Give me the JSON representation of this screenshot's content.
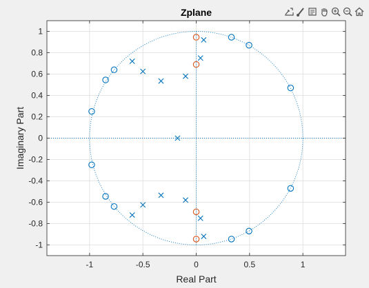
{
  "chart_data": {
    "type": "scatter",
    "title": "Zplane",
    "xlabel": "Real Part",
    "ylabel": "Imaginary Part",
    "xlim": [
      -1.4,
      1.4
    ],
    "ylim": [
      -1.1,
      1.1
    ],
    "xticks": [
      -1,
      -0.5,
      0,
      0.5,
      1
    ],
    "xtick_labels": [
      "-1",
      "-0.5",
      "0",
      "0.5",
      "1"
    ],
    "yticks": [
      1,
      0.8,
      0.6,
      0.4,
      0.2,
      0,
      -0.2,
      -0.4,
      -0.6,
      -0.8,
      -1
    ],
    "ytick_labels": [
      "1",
      "0.8",
      "0.6",
      "0.4",
      "0.2",
      "0",
      "-0.2",
      "-0.4",
      "-0.6",
      "-0.8",
      "-1"
    ],
    "grid": true,
    "unit_circle": true,
    "series": [
      {
        "marker": "o",
        "color": "#0072BD",
        "points": [
          [
            0.33,
            0.945
          ],
          [
            0.495,
            0.87
          ],
          [
            0.885,
            0.47
          ],
          [
            -0.98,
            0.25
          ],
          [
            -0.85,
            0.545
          ],
          [
            -0.77,
            0.64
          ],
          [
            -0.98,
            -0.25
          ],
          [
            -0.85,
            -0.545
          ],
          [
            -0.77,
            -0.64
          ],
          [
            0.33,
            -0.945
          ],
          [
            0.495,
            -0.87
          ],
          [
            0.885,
            -0.47
          ]
        ]
      },
      {
        "marker": "o",
        "color": "#D95319",
        "points": [
          [
            0.0,
            0.945
          ],
          [
            0.0,
            0.69
          ],
          [
            0.0,
            -0.69
          ],
          [
            0.0,
            -0.945
          ]
        ]
      },
      {
        "marker": "x",
        "color": "#0072BD",
        "points": [
          [
            0.07,
            0.92
          ],
          [
            0.04,
            0.75
          ],
          [
            -0.1,
            0.58
          ],
          [
            -0.33,
            0.535
          ],
          [
            -0.5,
            0.625
          ],
          [
            -0.6,
            0.72
          ],
          [
            0.07,
            -0.92
          ],
          [
            0.04,
            -0.75
          ],
          [
            -0.1,
            -0.58
          ],
          [
            -0.33,
            -0.535
          ],
          [
            -0.5,
            -0.625
          ],
          [
            -0.6,
            -0.72
          ],
          [
            -0.175,
            0.0
          ]
        ]
      }
    ]
  },
  "toolbar": {
    "icons": [
      "export-icon",
      "brush-icon",
      "datatip-icon",
      "pan-icon",
      "zoom-in-icon",
      "zoom-out-icon",
      "home-icon"
    ]
  }
}
